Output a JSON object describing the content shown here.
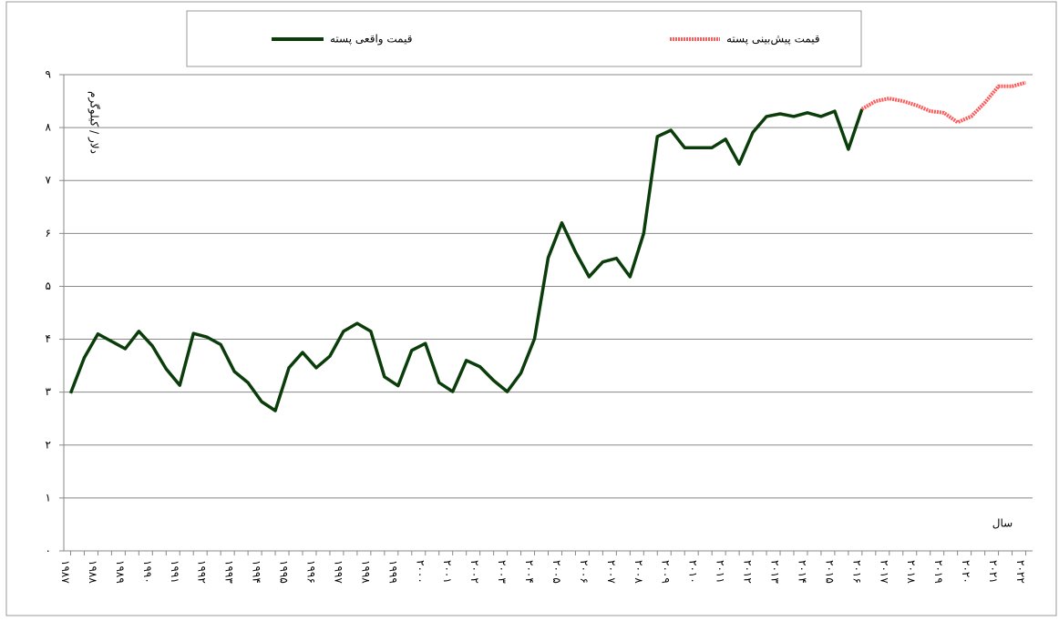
{
  "chart_data": {
    "type": "line",
    "legend": {
      "position": "top"
    },
    "y_label": "دلار / کیلوگرم",
    "x_label": "سال",
    "categories": [
      "۱۹۸۷",
      null,
      "۱۹۸۸",
      null,
      "۱۹۸۹",
      null,
      "۱۹۹۰",
      null,
      "۱۹۹۱",
      null,
      "۱۹۹۲",
      null,
      "۱۹۹۳",
      null,
      "۱۹۹۴",
      null,
      "۱۹۹۵",
      null,
      "۱۹۹۶",
      null,
      "۱۹۹۷",
      null,
      "۱۹۹۸",
      null,
      "۱۹۹۹",
      null,
      "۲۰۰۰",
      null,
      "۲۰۰۱",
      null,
      "۲۰۰۲",
      null,
      "۲۰۰۳",
      null,
      "۲۰۰۴",
      null,
      "۲۰۰۵",
      null,
      "۲۰۰۶",
      null,
      "۲۰۰۷",
      null,
      "۲۰۰۸",
      null,
      "۲۰۰۹",
      null,
      "۲۰۱۰",
      null,
      "۲۰۱۱",
      null,
      "۲۰۱۲",
      null,
      "۲۰۱۳",
      null,
      "۲۰۱۴",
      null,
      "۲۰۱۵",
      null,
      "۲۰۱۶",
      null,
      "۲۰۱۷",
      null,
      "۲۰۱۸",
      null,
      "۲۰۱۹",
      null,
      "۲۰۲۰",
      null,
      "۲۰۲۱",
      null,
      "۲۰۲۲"
    ],
    "series": [
      {
        "name": "قیمت واقعی پسته",
        "color": "#0b3d0b",
        "values": [
          2.98,
          3.65,
          4.1,
          3.96,
          3.82,
          4.15,
          3.87,
          3.44,
          3.13,
          4.11,
          4.04,
          3.9,
          3.39,
          3.18,
          2.82,
          2.65,
          3.46,
          3.75,
          3.46,
          3.68,
          4.15,
          4.3,
          4.15,
          3.29,
          3.12,
          3.79,
          3.92,
          3.18,
          3.01,
          3.6,
          3.48,
          3.22,
          3.01,
          3.36,
          4.01,
          5.54,
          6.2,
          5.65,
          5.18,
          5.46,
          5.53,
          5.18,
          6.0,
          7.83,
          7.95,
          7.62,
          7.62,
          7.62,
          7.78,
          7.31,
          7.91,
          8.21,
          8.26,
          8.21,
          8.28,
          8.21,
          8.31,
          7.59,
          8.35,
          null,
          null,
          null,
          null,
          null,
          null,
          null,
          null,
          null,
          null,
          null,
          null
        ]
      },
      {
        "name": "قیمت پیش‌بینی پسته",
        "color": "#ff5a5a",
        "values": [
          null,
          null,
          null,
          null,
          null,
          null,
          null,
          null,
          null,
          null,
          null,
          null,
          null,
          null,
          null,
          null,
          null,
          null,
          null,
          null,
          null,
          null,
          null,
          null,
          null,
          null,
          null,
          null,
          null,
          null,
          null,
          null,
          null,
          null,
          null,
          null,
          null,
          null,
          null,
          null,
          null,
          null,
          null,
          null,
          null,
          null,
          null,
          null,
          null,
          null,
          null,
          null,
          null,
          null,
          null,
          null,
          null,
          null,
          8.35,
          8.5,
          8.55,
          8.5,
          8.42,
          8.31,
          8.28,
          8.1,
          8.21,
          8.47,
          8.78,
          8.78,
          8.85
        ]
      }
    ],
    "ylim": [
      0,
      9
    ],
    "yticks": [
      {
        "value": 0,
        "label": "۰"
      },
      {
        "value": 1,
        "label": "۱"
      },
      {
        "value": 2,
        "label": "۲"
      },
      {
        "value": 3,
        "label": "۳"
      },
      {
        "value": 4,
        "label": "۴"
      },
      {
        "value": 5,
        "label": "۵"
      },
      {
        "value": 6,
        "label": "۶"
      },
      {
        "value": 7,
        "label": "۷"
      },
      {
        "value": 8,
        "label": "۸"
      },
      {
        "value": 9,
        "label": "۹"
      }
    ],
    "grid": true
  }
}
